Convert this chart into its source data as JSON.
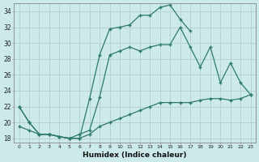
{
  "xlabel": "Humidex (Indice chaleur)",
  "background_color": "#cdeaea",
  "grid_color": "#b0c8c8",
  "line_color": "#2d7a6a",
  "xlim": [
    -0.5,
    23.5
  ],
  "ylim": [
    17.5,
    35
  ],
  "xticks": [
    0,
    1,
    2,
    3,
    4,
    5,
    6,
    7,
    8,
    9,
    10,
    11,
    12,
    13,
    14,
    15,
    16,
    17,
    18,
    19,
    20,
    21,
    22,
    23
  ],
  "yticks": [
    18,
    20,
    22,
    24,
    26,
    28,
    30,
    32,
    34
  ],
  "line1_x": [
    0,
    1,
    2,
    3,
    4,
    5,
    6,
    7,
    8,
    9,
    10,
    11,
    12,
    13,
    14,
    15,
    16,
    17
  ],
  "line1_y": [
    22.0,
    20.0,
    18.5,
    18.5,
    18.2,
    18.0,
    18.0,
    23.0,
    28.5,
    31.8,
    32.0,
    32.3,
    33.5,
    33.5,
    34.5,
    34.8,
    33.0,
    31.5
  ],
  "line2_x": [
    0,
    1,
    2,
    3,
    4,
    5,
    6,
    7,
    8,
    9,
    10,
    11,
    12,
    13,
    14,
    15,
    16,
    17,
    18,
    19,
    20,
    21,
    22,
    23
  ],
  "line2_y": [
    22.0,
    20.0,
    18.5,
    18.5,
    18.2,
    18.0,
    18.5,
    19.0,
    23.2,
    28.5,
    29.0,
    29.5,
    29.0,
    29.5,
    29.8,
    29.8,
    32.0,
    29.5,
    27.0,
    29.5,
    25.0,
    27.5,
    25.0,
    23.5
  ],
  "line3_x": [
    0,
    1,
    2,
    3,
    4,
    5,
    6,
    7,
    8,
    9,
    10,
    11,
    12,
    13,
    14,
    15,
    16,
    17,
    18,
    19,
    20,
    21,
    22,
    23
  ],
  "line3_y": [
    19.5,
    19.0,
    18.5,
    18.5,
    18.2,
    18.0,
    18.0,
    18.5,
    19.5,
    20.0,
    20.5,
    21.0,
    21.5,
    22.0,
    22.5,
    22.5,
    22.5,
    22.5,
    22.8,
    23.0,
    23.0,
    22.8,
    23.0,
    23.5
  ]
}
